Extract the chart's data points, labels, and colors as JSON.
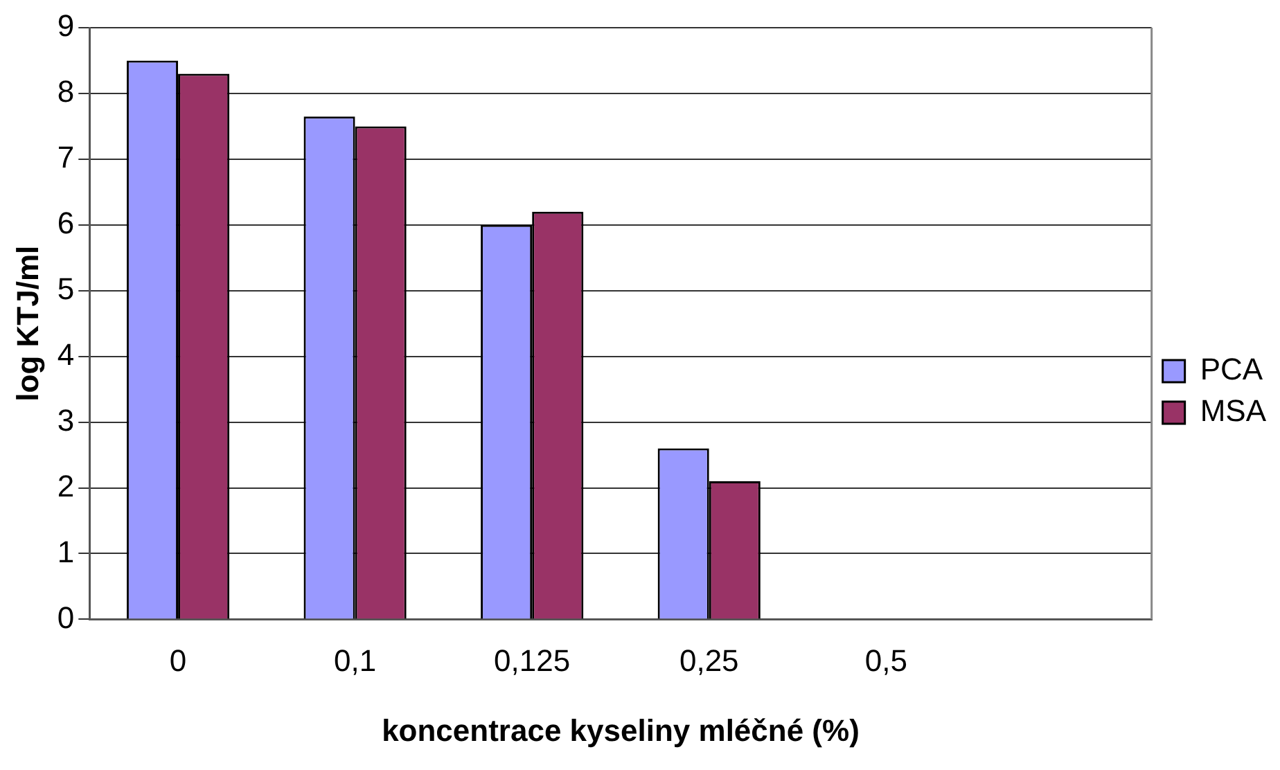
{
  "chart_data": {
    "type": "bar",
    "xlabel": "koncentrace kyseliny mléčné (%)",
    "ylabel": "log KTJ/ml",
    "categories": [
      "0",
      "0,1",
      "0,125",
      "0,25",
      "0,5",
      null
    ],
    "series": [
      {
        "name": "PCA",
        "color": "#9999ff",
        "values": [
          8.5,
          7.65,
          6.0,
          2.6,
          0,
          null
        ]
      },
      {
        "name": "MSA",
        "color": "#993366",
        "values": [
          8.3,
          7.5,
          6.2,
          2.1,
          0,
          null
        ]
      }
    ],
    "ylim": [
      0,
      9
    ],
    "yticks": [
      0,
      1,
      2,
      3,
      4,
      5,
      6,
      7,
      8,
      9
    ],
    "grid": "y",
    "legend": "right"
  }
}
